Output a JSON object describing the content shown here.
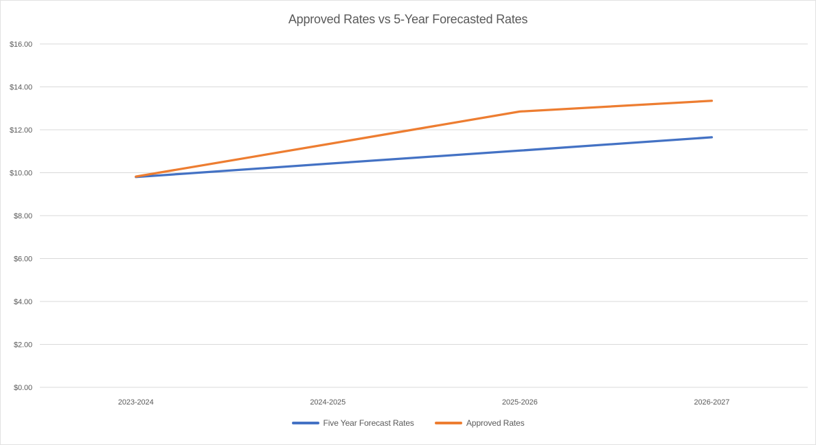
{
  "chart_data": {
    "type": "line",
    "title": "Approved Rates vs 5-Year Forecasted Rates",
    "categories": [
      "2023-2024",
      "2024-2025",
      "2025-2026",
      "2026-2027"
    ],
    "series": [
      {
        "name": "Five Year Forecast Rates",
        "color": "#4472C4",
        "values": [
          9.8,
          10.42,
          11.03,
          11.65
        ]
      },
      {
        "name": "Approved Rates",
        "color": "#ED7D31",
        "values": [
          9.82,
          11.33,
          12.85,
          13.35
        ]
      }
    ],
    "y_axis": {
      "min": 0,
      "max": 16,
      "step": 2,
      "tick_labels": [
        "$0.00",
        "$2.00",
        "$4.00",
        "$6.00",
        "$8.00",
        "$10.00",
        "$12.00",
        "$14.00",
        "$16.00"
      ]
    },
    "x_axis": {
      "label": ""
    },
    "ylabel": "",
    "xlabel": "",
    "legend_position": "bottom",
    "grid": true,
    "colors": {
      "gridline": "#d9d9d9",
      "axis_text": "#595959",
      "title_text": "#595959",
      "background": "#ffffff"
    }
  }
}
